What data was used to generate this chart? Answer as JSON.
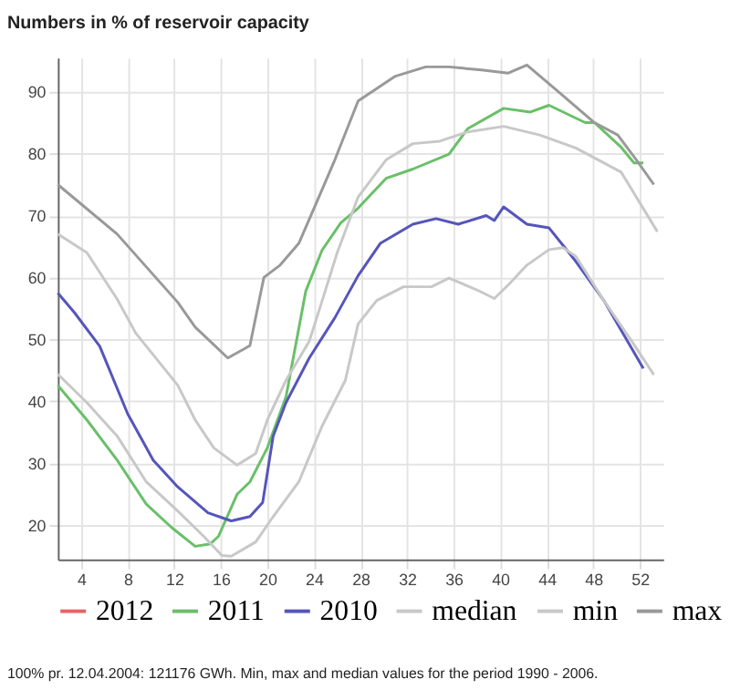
{
  "chart_data": {
    "type": "line",
    "title": "Numbers in % of reservoir capacity",
    "xlim": [
      2,
      54
    ],
    "xticks": [
      4,
      8,
      12,
      16,
      20,
      24,
      28,
      32,
      36,
      40,
      44,
      48,
      52
    ],
    "ylim": [
      14.5,
      95.5
    ],
    "yticks": [
      20,
      30,
      40,
      50,
      60,
      70,
      80,
      90
    ],
    "grid": true,
    "legend": "bottom",
    "marker": "none",
    "line_style": "solid",
    "annotations": [
      "100% pr. 12.04.2004: 121176 GWh.    Min, max and median values for the period 1990 - 2006."
    ],
    "series": [
      {
        "name": "2012",
        "color": "#e06666"
      },
      {
        "name": "2011",
        "color": "#6abf69",
        "x": [
          2,
          4.5,
          7.1,
          9.6,
          11.8,
          13.8,
          15.1,
          15.8,
          17.4,
          18.5,
          20,
          21.6,
          23.3,
          24.7,
          26.3,
          27.8,
          30.2,
          32.5,
          35.6,
          37.2,
          40.3,
          42.6,
          44.2,
          47.3,
          48.1,
          50.4,
          51.5,
          52.3
        ],
        "values": [
          42.6,
          37,
          30.5,
          23.4,
          19.6,
          16.6,
          17,
          18.2,
          25,
          27,
          32.5,
          40.7,
          57.8,
          64.4,
          68.8,
          71.2,
          76,
          77.5,
          79.9,
          84,
          87.3,
          86.7,
          87.8,
          85,
          85,
          81,
          78.5,
          78.5
        ]
      },
      {
        "name": "2010",
        "color": "#5555bb",
        "x": [
          2,
          3.4,
          5.6,
          8,
          10.2,
          12.3,
          14.9,
          16.9,
          18.5,
          19.6,
          20.5,
          21.6,
          23.6,
          25.8,
          27.8,
          29.7,
          32.5,
          34.5,
          36.4,
          38.8,
          39.5,
          40.3,
          42.3,
          44.2,
          46.5,
          48.9,
          52.3
        ],
        "values": [
          57.5,
          54.4,
          48.9,
          38,
          30.5,
          26.2,
          22,
          20.7,
          21.4,
          23.7,
          34.4,
          39.8,
          47,
          53.5,
          60.3,
          65.5,
          68.6,
          69.5,
          68.6,
          70,
          69.2,
          71.4,
          68.6,
          68,
          62.6,
          56.3,
          45.3
        ]
      },
      {
        "name": "median",
        "color": "#c8c8c8",
        "x": [
          2,
          4.5,
          7.1,
          8.7,
          12.3,
          13.8,
          15.4,
          17.4,
          19,
          20,
          21.6,
          23.6,
          24.5,
          26,
          27.8,
          30.2,
          32.5,
          34.8,
          37.2,
          40.3,
          43.4,
          46.5,
          50.4,
          53.5
        ],
        "values": [
          67,
          64,
          56.5,
          51,
          42.6,
          37,
          32.5,
          29.7,
          31.6,
          37,
          43.4,
          49.7,
          55,
          64,
          73,
          79,
          81.6,
          82,
          83.5,
          84.4,
          83,
          80.9,
          77,
          67.4
        ]
      },
      {
        "name": "min",
        "color": "#c8c8c8",
        "x": [
          2,
          4.5,
          7.1,
          9.6,
          12.3,
          14.6,
          16.1,
          16.9,
          19,
          20.5,
          22.7,
          24.7,
          26.7,
          27.8,
          29.4,
          31.7,
          34.1,
          35.6,
          38,
          39.5,
          40.8,
          42.3,
          44.2,
          45.4,
          46.5,
          48.9,
          51.2,
          53.2
        ],
        "values": [
          44.4,
          39.8,
          34.4,
          27,
          22.3,
          18.1,
          15.1,
          15,
          17.3,
          21.4,
          27,
          36,
          43.4,
          52.5,
          56.3,
          58.5,
          58.5,
          59.9,
          58,
          56.6,
          59,
          62,
          64.5,
          64.8,
          63.4,
          56.3,
          50,
          44.3
        ]
      },
      {
        "name": "max",
        "color": "#999999",
        "x": [
          2,
          7.1,
          12.3,
          13.8,
          16.6,
          18.5,
          19.7,
          21.1,
          22.7,
          24.2,
          25.8,
          27.8,
          31,
          33.6,
          35.6,
          38.4,
          40.7,
          42.3,
          45,
          48.1,
          50.1,
          51.7,
          53.2
        ],
        "values": [
          75,
          67,
          56,
          52,
          47,
          49,
          60,
          62,
          65.5,
          72,
          79,
          88.5,
          92.5,
          94,
          94,
          93.5,
          93,
          94.3,
          90,
          85,
          83,
          79,
          75
        ]
      }
    ]
  }
}
